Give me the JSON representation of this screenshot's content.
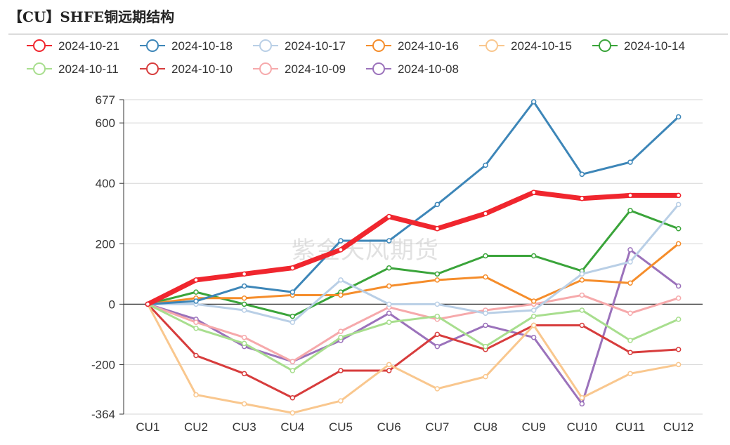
{
  "page": {
    "title": "【CU】SHFE铜远期结构",
    "watermark": "紫金天风期货"
  },
  "chart_data": {
    "type": "line",
    "title": "【CU】SHFE铜远期结构",
    "categories": [
      "CU1",
      "CU2",
      "CU3",
      "CU4",
      "CU5",
      "CU6",
      "CU7",
      "CU8",
      "CU9",
      "CU10",
      "CU11",
      "CU12"
    ],
    "ylim": [
      -364,
      677
    ],
    "yticks": [
      -364,
      -200,
      0,
      200,
      400,
      600,
      677
    ],
    "grid": true,
    "legend_position": "top",
    "series": [
      {
        "name": "2024-10-21",
        "color": "#f0262e",
        "width": 7,
        "values": [
          0,
          80,
          100,
          120,
          180,
          290,
          250,
          300,
          370,
          350,
          360,
          360
        ]
      },
      {
        "name": "2024-10-18",
        "color": "#3d86b8",
        "width": 3,
        "values": [
          0,
          10,
          60,
          40,
          210,
          210,
          330,
          460,
          670,
          430,
          470,
          620
        ]
      },
      {
        "name": "2024-10-17",
        "color": "#b9cfe6",
        "width": 3,
        "values": [
          0,
          0,
          -20,
          -60,
          80,
          0,
          0,
          -30,
          -20,
          100,
          140,
          330
        ]
      },
      {
        "name": "2024-10-16",
        "color": "#f58d2b",
        "width": 3,
        "values": [
          0,
          20,
          20,
          30,
          30,
          60,
          80,
          90,
          10,
          80,
          70,
          200
        ]
      },
      {
        "name": "2024-10-15",
        "color": "#f9c78e",
        "width": 3,
        "values": [
          0,
          -300,
          -330,
          -360,
          -320,
          -200,
          -280,
          -240,
          -70,
          -310,
          -230,
          -200
        ]
      },
      {
        "name": "2024-10-14",
        "color": "#3aa43a",
        "width": 3,
        "values": [
          0,
          40,
          0,
          -40,
          40,
          120,
          100,
          160,
          160,
          110,
          310,
          250
        ]
      },
      {
        "name": "2024-10-11",
        "color": "#a8de8e",
        "width": 3,
        "values": [
          0,
          -80,
          -130,
          -220,
          -110,
          -60,
          -40,
          -140,
          -40,
          -20,
          -120,
          -50
        ]
      },
      {
        "name": "2024-10-10",
        "color": "#d73c3c",
        "width": 3,
        "values": [
          0,
          -170,
          -230,
          -310,
          -220,
          -220,
          -100,
          -150,
          -70,
          -70,
          -160,
          -150
        ]
      },
      {
        "name": "2024-10-09",
        "color": "#f6a9ab",
        "width": 3,
        "values": [
          0,
          -60,
          -110,
          -190,
          -90,
          -10,
          -50,
          -20,
          0,
          30,
          -30,
          20
        ]
      },
      {
        "name": "2024-10-08",
        "color": "#9b72bb",
        "width": 3,
        "values": [
          0,
          -50,
          -140,
          -190,
          -120,
          -30,
          -140,
          -70,
          -110,
          -330,
          180,
          60
        ]
      }
    ]
  }
}
